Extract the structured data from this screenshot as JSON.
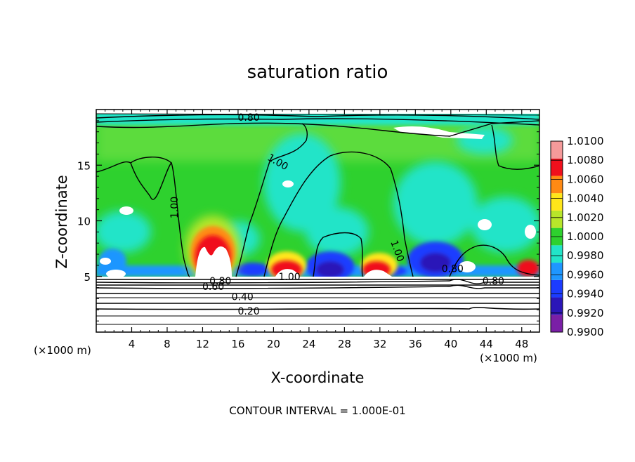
{
  "chart_data": {
    "type": "heatmap",
    "title": "saturation ratio",
    "xlabel": "X-coordinate",
    "ylabel": "Z-coordinate",
    "x_unit": "(×1000 m)",
    "footer": "CONTOUR INTERVAL = 1.000E-01",
    "xlim": [
      0,
      50
    ],
    "ylim": [
      0,
      20
    ],
    "x_ticks": [
      4,
      8,
      12,
      16,
      20,
      24,
      28,
      32,
      36,
      40,
      44,
      48
    ],
    "y_ticks": [
      5,
      10,
      15
    ],
    "colorbar": {
      "levels": [
        "0.9900",
        "0.9920",
        "0.9940",
        "0.9960",
        "0.9980",
        "1.0000",
        "1.0020",
        "1.0040",
        "1.0060",
        "1.0080",
        "1.0100"
      ],
      "colors": [
        "#7a1fa6",
        "#2b16b8",
        "#1c3cff",
        "#1e96ff",
        "#22e4c8",
        "#2ed12e",
        "#b8e62a",
        "#ffe61a",
        "#ff8a14",
        "#f0101c",
        "#f59a9a"
      ]
    },
    "contour_labels": [
      {
        "text": "0.80",
        "x": 17.2,
        "z": 19.3
      },
      {
        "text": "1.00",
        "x": 20.5,
        "z": 15.3
      },
      {
        "text": "1.00",
        "x": 8.8,
        "z": 11.2
      },
      {
        "text": "1.00",
        "x": 34.0,
        "z": 7.3
      },
      {
        "text": "1.00",
        "x": 21.8,
        "z": 5.0
      },
      {
        "text": "0.80",
        "x": 14.0,
        "z": 4.6
      },
      {
        "text": "0.60",
        "x": 13.2,
        "z": 4.1
      },
      {
        "text": "0.40",
        "x": 16.5,
        "z": 3.2
      },
      {
        "text": "0.20",
        "x": 17.2,
        "z": 1.9
      },
      {
        "text": "0.80",
        "x": 44.8,
        "z": 4.6
      },
      {
        "text": "0.80",
        "x": 40.2,
        "z": 5.7
      }
    ]
  }
}
